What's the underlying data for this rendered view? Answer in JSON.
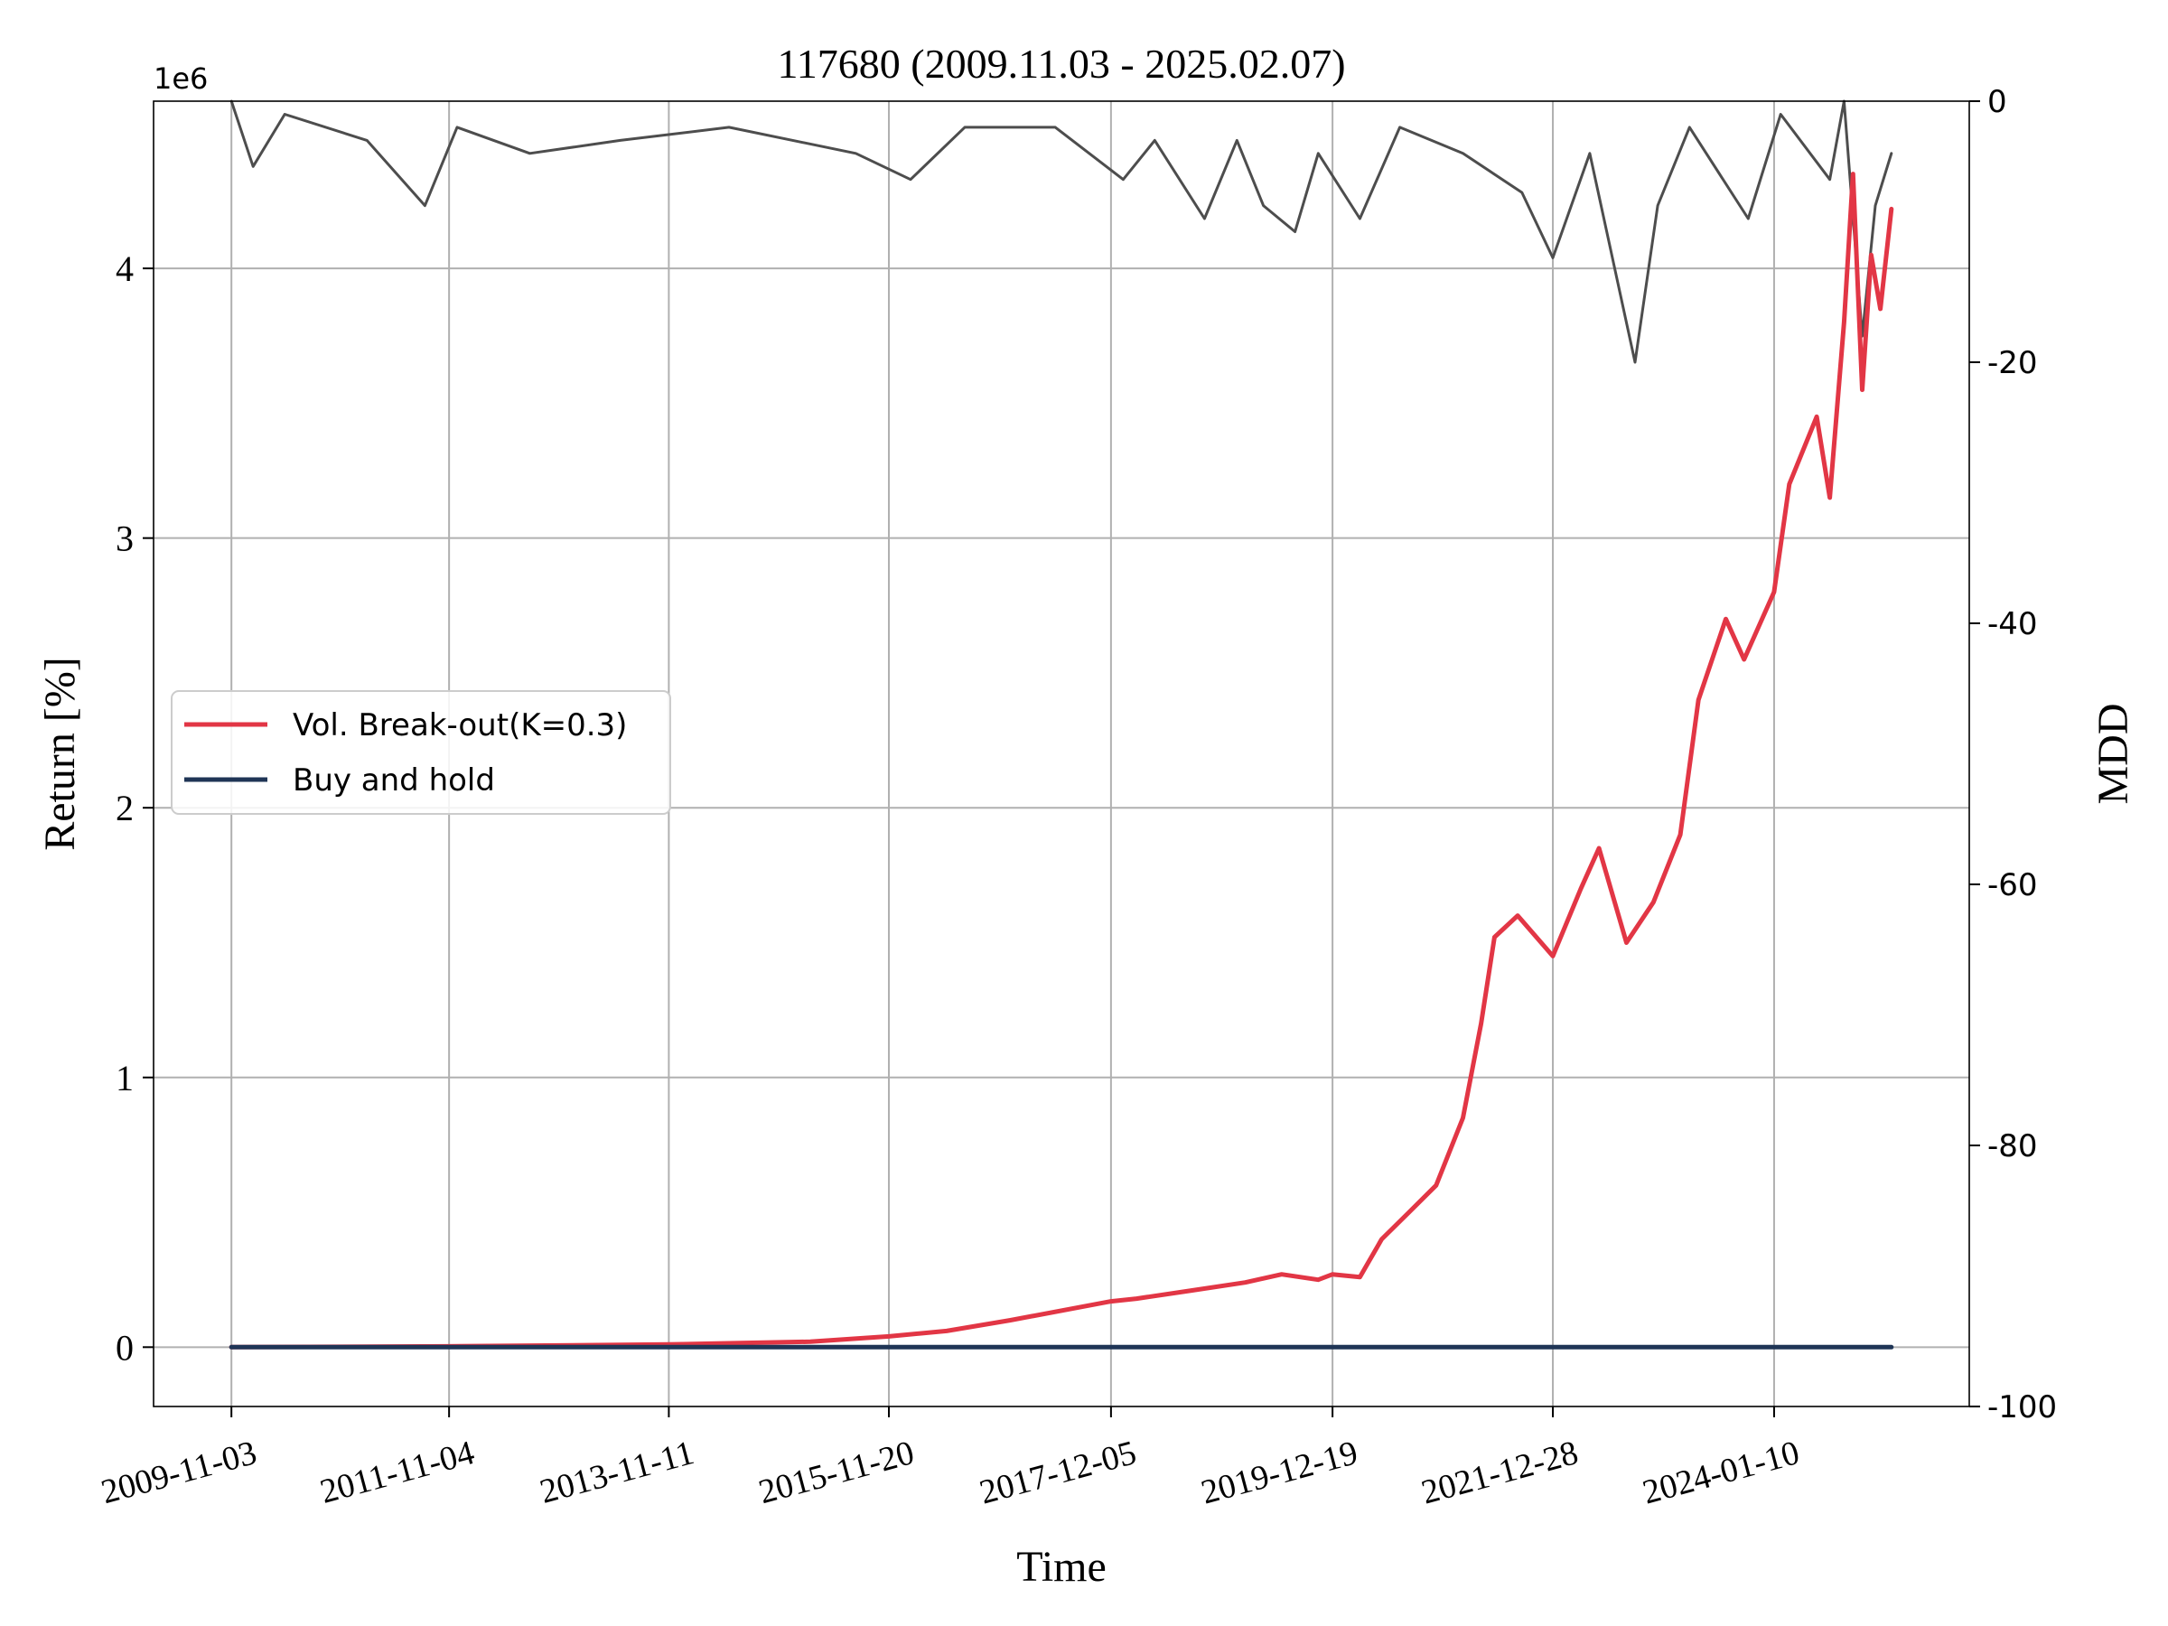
{
  "chart_data": {
    "type": "line",
    "title": "117680 (2009.11.03 - 2025.02.07)",
    "xlabel": "Time",
    "ylabel": "Return [%]",
    "y2label": "MDD",
    "y_offset_label": "1e6",
    "x_tick_labels": [
      "2009-11-03",
      "2011-11-04",
      "2013-11-11",
      "2015-11-20",
      "2017-12-05",
      "2019-12-19",
      "2021-12-28",
      "2024-01-10"
    ],
    "x_range": [
      "2009-11-03",
      "2025-02-07"
    ],
    "ylim": [
      -0.22,
      4.62
    ],
    "y_ticks": [
      0,
      1,
      2,
      3,
      4
    ],
    "y2lim": [
      -100,
      0
    ],
    "y2_ticks": [
      0,
      -20,
      -40,
      -60,
      -80,
      -100
    ],
    "grid": true,
    "legend_position": "center-left",
    "colors": {
      "strategy": "#e23645",
      "buy_hold": "#1f3556",
      "mdd": "#4d4d4d",
      "grid": "#b0b0b0",
      "axes": "#000000"
    },
    "series": [
      {
        "name": "Vol. Break-out(K=0.3)",
        "axis": "left",
        "unit": "1e6",
        "points": [
          [
            "2009-11-03",
            0.0
          ],
          [
            "2011-11-04",
            0.003
          ],
          [
            "2013-11-11",
            0.01
          ],
          [
            "2015-03-01",
            0.02
          ],
          [
            "2015-11-20",
            0.04
          ],
          [
            "2016-06-01",
            0.06
          ],
          [
            "2017-01-01",
            0.1
          ],
          [
            "2017-12-05",
            0.17
          ],
          [
            "2018-03-01",
            0.18
          ],
          [
            "2018-09-01",
            0.21
          ],
          [
            "2019-03-01",
            0.24
          ],
          [
            "2019-07-01",
            0.27
          ],
          [
            "2019-11-01",
            0.25
          ],
          [
            "2019-12-19",
            0.27
          ],
          [
            "2020-03-20",
            0.26
          ],
          [
            "2020-06-01",
            0.4
          ],
          [
            "2020-09-01",
            0.5
          ],
          [
            "2020-12-01",
            0.6
          ],
          [
            "2021-03-01",
            0.85
          ],
          [
            "2021-05-01",
            1.2
          ],
          [
            "2021-06-15",
            1.52
          ],
          [
            "2021-09-01",
            1.6
          ],
          [
            "2021-12-28",
            1.45
          ],
          [
            "2022-04-01",
            1.7
          ],
          [
            "2022-06-01",
            1.85
          ],
          [
            "2022-09-01",
            1.5
          ],
          [
            "2022-12-01",
            1.65
          ],
          [
            "2023-03-01",
            1.9
          ],
          [
            "2023-05-01",
            2.4
          ],
          [
            "2023-08-01",
            2.7
          ],
          [
            "2023-10-01",
            2.55
          ],
          [
            "2024-01-10",
            2.8
          ],
          [
            "2024-03-01",
            3.2
          ],
          [
            "2024-06-01",
            3.45
          ],
          [
            "2024-07-15",
            3.15
          ],
          [
            "2024-09-01",
            3.8
          ],
          [
            "2024-10-01",
            4.35
          ],
          [
            "2024-11-01",
            3.55
          ],
          [
            "2024-12-01",
            4.05
          ],
          [
            "2025-01-01",
            3.85
          ],
          [
            "2025-02-07",
            4.22
          ]
        ]
      },
      {
        "name": "Buy and hold",
        "axis": "left",
        "unit": "1e6",
        "points": [
          [
            "2009-11-03",
            0.0
          ],
          [
            "2025-02-07",
            0.0
          ]
        ]
      },
      {
        "name": "",
        "axis": "right",
        "points": [
          [
            "2009-11-03",
            0
          ],
          [
            "2010-01-15",
            -5
          ],
          [
            "2010-05-01",
            -1
          ],
          [
            "2011-02-01",
            -3
          ],
          [
            "2011-08-15",
            -8
          ],
          [
            "2011-12-01",
            -2
          ],
          [
            "2012-08-01",
            -4
          ],
          [
            "2013-06-01",
            -3
          ],
          [
            "2014-06-01",
            -2
          ],
          [
            "2015-08-01",
            -4
          ],
          [
            "2016-02-01",
            -6
          ],
          [
            "2016-08-01",
            -2
          ],
          [
            "2017-06-01",
            -2
          ],
          [
            "2018-01-15",
            -6
          ],
          [
            "2018-05-01",
            -3
          ],
          [
            "2018-10-15",
            -9
          ],
          [
            "2019-02-01",
            -3
          ],
          [
            "2019-05-01",
            -8
          ],
          [
            "2019-08-15",
            -10
          ],
          [
            "2019-11-01",
            -4
          ],
          [
            "2020-03-20",
            -9
          ],
          [
            "2020-08-01",
            -2
          ],
          [
            "2021-03-01",
            -4
          ],
          [
            "2021-09-15",
            -7
          ],
          [
            "2021-12-28",
            -12
          ],
          [
            "2022-05-01",
            -4
          ],
          [
            "2022-09-30",
            -20
          ],
          [
            "2022-12-15",
            -8
          ],
          [
            "2023-04-01",
            -2
          ],
          [
            "2023-10-15",
            -9
          ],
          [
            "2024-02-01",
            -1
          ],
          [
            "2024-07-15",
            -6
          ],
          [
            "2024-09-01",
            0
          ],
          [
            "2024-11-01",
            -18
          ],
          [
            "2024-12-15",
            -8
          ],
          [
            "2025-02-07",
            -4
          ]
        ]
      }
    ]
  }
}
